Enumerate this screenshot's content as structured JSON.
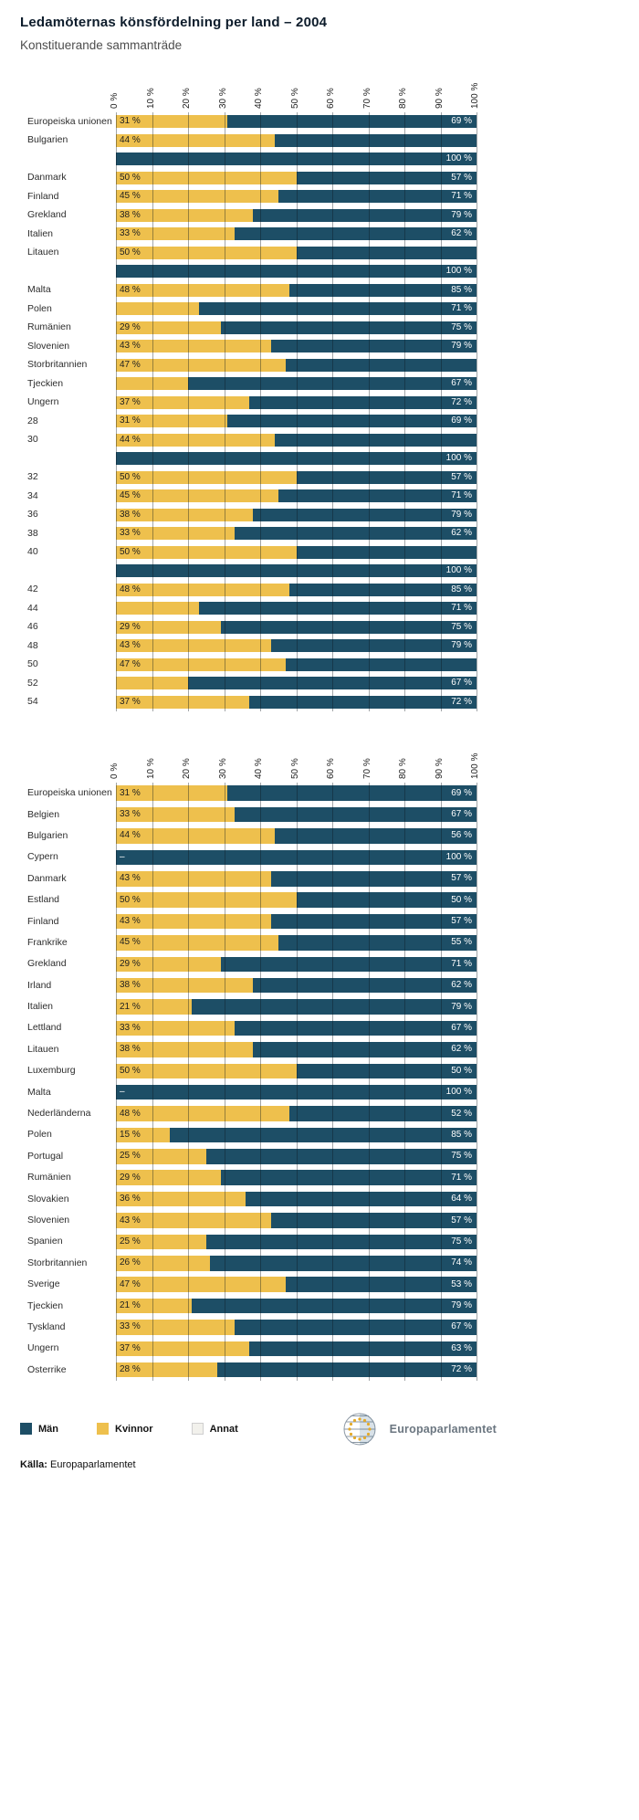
{
  "title": "Ledamöternas könsfördelning per land – 2004",
  "subtitle": "Konstituerande sammanträde",
  "colors": {
    "men": "#1d4e66",
    "women": "#eec04d",
    "other": "#f2f1ec",
    "grid": "rgba(10,20,30,0.38)"
  },
  "legend": [
    {
      "label": "Män",
      "color_key": "men"
    },
    {
      "label": "Kvinnor",
      "color_key": "women"
    },
    {
      "label": "Annat",
      "color_key": "other"
    }
  ],
  "logo_text": "Europaparlamentet",
  "source_label": "Källa:",
  "source_text": " Europaparlamentet",
  "chart_data": [
    {
      "type": "bar",
      "orientation": "horizontal",
      "stacked": true,
      "unit": "%",
      "xlim": [
        0,
        100
      ],
      "x_ticks": [
        "0 %",
        "10 %",
        "20 %",
        "30 %",
        "40 %",
        "50 %",
        "60 %",
        "70 %",
        "80 %",
        "90 %",
        "100 %"
      ],
      "series_names": [
        "Kvinnor",
        "Män"
      ],
      "note": "upper chart – constituent sitting, labels partially glitched in source image",
      "rows": [
        {
          "label": "Europeiska unionen",
          "women_label": "31 %",
          "women": 31,
          "men_label": "69 %"
        },
        {
          "label": "Bulgarien",
          "women_label": "44 %",
          "women": 44,
          "men_label": ""
        },
        {
          "label": "",
          "women_label": "",
          "women": 0,
          "men_label": "100 %"
        },
        {
          "label": "Danmark",
          "women_label": "50 %",
          "women": 50,
          "men_label": "57 %"
        },
        {
          "label": "Finland",
          "women_label": "45 %",
          "women": 45,
          "men_label": "71 %"
        },
        {
          "label": "Grekland",
          "women_label": "38 %",
          "women": 38,
          "men_label": "79 %"
        },
        {
          "label": "Italien",
          "women_label": "33 %",
          "women": 33,
          "men_label": "62 %"
        },
        {
          "label": "Litauen",
          "women_label": "50 %",
          "women": 50,
          "men_label": ""
        },
        {
          "label": "",
          "women_label": "",
          "women": 0,
          "men_label": "100 %"
        },
        {
          "label": "Malta",
          "women_label": "48 %",
          "women": 48,
          "men_label": "85 %"
        },
        {
          "label": "Polen",
          "women_label": "",
          "women": 23,
          "men_label": "71 %"
        },
        {
          "label": "Rumänien",
          "women_label": "29 %",
          "women": 29,
          "men_label": "75 %"
        },
        {
          "label": "Slovenien",
          "women_label": "43 %",
          "women": 43,
          "men_label": "79 %"
        },
        {
          "label": "Storbritannien",
          "women_label": "47 %",
          "women": 47,
          "men_label": ""
        },
        {
          "label": "Tjeckien",
          "women_label": "",
          "women": 20,
          "men_label": "67 %"
        },
        {
          "label": "Ungern",
          "women_label": "37 %",
          "women": 37,
          "men_label": "72 %"
        },
        {
          "label": "28",
          "women_label": "31 %",
          "women": 31,
          "men_label": "69 %"
        },
        {
          "label": "30",
          "women_label": "44 %",
          "women": 44,
          "men_label": ""
        },
        {
          "label": "",
          "women_label": "",
          "women": 0,
          "men_label": "100 %"
        },
        {
          "label": "32",
          "women_label": "50 %",
          "women": 50,
          "men_label": "57 %"
        },
        {
          "label": "34",
          "women_label": "45 %",
          "women": 45,
          "men_label": "71 %"
        },
        {
          "label": "36",
          "women_label": "38 %",
          "women": 38,
          "men_label": "79 %"
        },
        {
          "label": "38",
          "women_label": "33 %",
          "women": 33,
          "men_label": "62 %"
        },
        {
          "label": "40",
          "women_label": "50 %",
          "women": 50,
          "men_label": ""
        },
        {
          "label": "",
          "women_label": "",
          "women": 0,
          "men_label": "100 %"
        },
        {
          "label": "42",
          "women_label": "48 %",
          "women": 48,
          "men_label": "85 %"
        },
        {
          "label": "44",
          "women_label": "",
          "women": 23,
          "men_label": "71 %"
        },
        {
          "label": "46",
          "women_label": "29 %",
          "women": 29,
          "men_label": "75 %"
        },
        {
          "label": "48",
          "women_label": "43 %",
          "women": 43,
          "men_label": "79 %"
        },
        {
          "label": "50",
          "women_label": "47 %",
          "women": 47,
          "men_label": ""
        },
        {
          "label": "52",
          "women_label": "",
          "women": 20,
          "men_label": "67 %"
        },
        {
          "label": "54",
          "women_label": "37 %",
          "women": 37,
          "men_label": "72 %"
        }
      ]
    },
    {
      "type": "bar",
      "orientation": "horizontal",
      "stacked": true,
      "unit": "%",
      "xlim": [
        0,
        100
      ],
      "x_ticks": [
        "0 %",
        "10 %",
        "20 %",
        "30 %",
        "40 %",
        "50 %",
        "60 %",
        "70 %",
        "80 %",
        "90 %",
        "100 %"
      ],
      "series_names": [
        "Kvinnor",
        "Män"
      ],
      "rows": [
        {
          "label": "Europeiska unionen",
          "women_label": "31 %",
          "women": 31,
          "men_label": "69 %"
        },
        {
          "label": "Belgien",
          "women_label": "33 %",
          "women": 33,
          "men_label": "67 %"
        },
        {
          "label": "Bulgarien",
          "women_label": "44 %",
          "women": 44,
          "men_label": "56 %"
        },
        {
          "label": "Cypern",
          "women_label": "–",
          "women": 0,
          "men_label": "100 %"
        },
        {
          "label": "Danmark",
          "women_label": "43 %",
          "women": 43,
          "men_label": "57 %"
        },
        {
          "label": "Estland",
          "women_label": "50 %",
          "women": 50,
          "men_label": "50 %"
        },
        {
          "label": "Finland",
          "women_label": "43 %",
          "women": 43,
          "men_label": "57 %"
        },
        {
          "label": "Frankrike",
          "women_label": "45 %",
          "women": 45,
          "men_label": "55 %"
        },
        {
          "label": "Grekland",
          "women_label": "29 %",
          "women": 29,
          "men_label": "71 %"
        },
        {
          "label": "Irland",
          "women_label": "38 %",
          "women": 38,
          "men_label": "62 %"
        },
        {
          "label": "Italien",
          "women_label": "21 %",
          "women": 21,
          "men_label": "79 %"
        },
        {
          "label": "Lettland",
          "women_label": "33 %",
          "women": 33,
          "men_label": "67 %"
        },
        {
          "label": "Litauen",
          "women_label": "38 %",
          "women": 38,
          "men_label": "62 %"
        },
        {
          "label": "Luxemburg",
          "women_label": "50 %",
          "women": 50,
          "men_label": "50 %"
        },
        {
          "label": "Malta",
          "women_label": "–",
          "women": 0,
          "men_label": "100 %"
        },
        {
          "label": "Nederländerna",
          "women_label": "48 %",
          "women": 48,
          "men_label": "52 %"
        },
        {
          "label": "Polen",
          "women_label": "15 %",
          "women": 15,
          "men_label": "85 %"
        },
        {
          "label": "Portugal",
          "women_label": "25 %",
          "women": 25,
          "men_label": "75 %"
        },
        {
          "label": "Rumänien",
          "women_label": "29 %",
          "women": 29,
          "men_label": "71 %"
        },
        {
          "label": "Slovakien",
          "women_label": "36 %",
          "women": 36,
          "men_label": "64 %"
        },
        {
          "label": "Slovenien",
          "women_label": "43 %",
          "women": 43,
          "men_label": "57 %"
        },
        {
          "label": "Spanien",
          "women_label": "25 %",
          "women": 25,
          "men_label": "75 %"
        },
        {
          "label": "Storbritannien",
          "women_label": "26 %",
          "women": 26,
          "men_label": "74 %"
        },
        {
          "label": "Sverige",
          "women_label": "47 %",
          "women": 47,
          "men_label": "53 %"
        },
        {
          "label": "Tjeckien",
          "women_label": "21 %",
          "women": 21,
          "men_label": "79 %"
        },
        {
          "label": "Tyskland",
          "women_label": "33 %",
          "women": 33,
          "men_label": "67 %"
        },
        {
          "label": "Ungern",
          "women_label": "37 %",
          "women": 37,
          "men_label": "63 %"
        },
        {
          "label": "Österrike",
          "women_label": "28 %",
          "women": 28,
          "men_label": "72 %"
        }
      ]
    }
  ]
}
